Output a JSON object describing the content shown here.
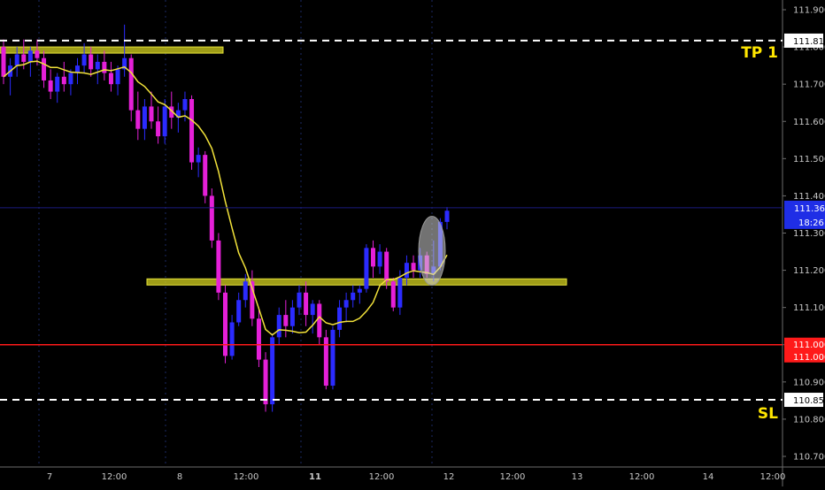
{
  "chart_data": {
    "type": "candlestick",
    "instrument_unit": "price",
    "ylim": [
      110.7,
      111.9
    ],
    "y_ticks": [
      "111.900",
      "111.800",
      "111.700",
      "111.600",
      "111.500",
      "111.400",
      "111.300",
      "111.200",
      "111.100",
      "111.000",
      "110.900",
      "110.800",
      "110.700"
    ],
    "x_ticks": [
      {
        "label": "7",
        "bold": false
      },
      {
        "label": "12:00",
        "bold": false
      },
      {
        "label": "8",
        "bold": false
      },
      {
        "label": "12:00",
        "bold": false
      },
      {
        "label": "11",
        "bold": true
      },
      {
        "label": "12:00",
        "bold": false
      },
      {
        "label": "12",
        "bold": false
      },
      {
        "label": "12:00",
        "bold": false
      },
      {
        "label": "13",
        "bold": false
      },
      {
        "label": "12:00",
        "bold": false
      },
      {
        "label": "14",
        "bold": false
      },
      {
        "label": "12:00",
        "bold": false
      }
    ],
    "horizontal_lines": [
      {
        "name": "take-profit-line",
        "price": 111.817,
        "label": "111.817",
        "text": "TP 1",
        "color": "#ffffff",
        "style": "dashed"
      },
      {
        "name": "stop-loss-line",
        "price": 110.852,
        "label": "110.852",
        "text": "SL",
        "color": "#ffffff",
        "style": "dashed"
      },
      {
        "name": "level-line",
        "price": 111.0,
        "label": "111.000",
        "label2": "111.000",
        "color": "#ff1a1a",
        "style": "solid"
      }
    ],
    "current_price": {
      "value": 111.368,
      "label": "111.368",
      "countdown": "18:26",
      "color": "#1f2ee6"
    },
    "zones": [
      {
        "name": "resistance-zone",
        "price_low": 111.79,
        "price_high": 111.8,
        "color": "#c7c41d"
      },
      {
        "name": "support-zone",
        "price_low": 111.167,
        "price_high": 111.177,
        "color": "#c7c41d"
      }
    ],
    "highlight": {
      "name": "breakout-ellipse",
      "price_low": 111.16,
      "price_high": 111.345
    },
    "moving_average_color": "#f2e23a",
    "candles": [
      [
        111.8,
        111.82,
        111.7,
        111.72
      ],
      [
        111.72,
        111.77,
        111.67,
        111.75
      ],
      [
        111.75,
        111.8,
        111.72,
        111.78
      ],
      [
        111.78,
        111.82,
        111.74,
        111.76
      ],
      [
        111.76,
        111.8,
        111.72,
        111.79
      ],
      [
        111.79,
        111.82,
        111.75,
        111.77
      ],
      [
        111.77,
        111.79,
        111.69,
        111.71
      ],
      [
        111.71,
        111.74,
        111.66,
        111.68
      ],
      [
        111.68,
        111.73,
        111.65,
        111.72
      ],
      [
        111.72,
        111.76,
        111.68,
        111.7
      ],
      [
        111.7,
        111.74,
        111.67,
        111.73
      ],
      [
        111.73,
        111.77,
        111.7,
        111.75
      ],
      [
        111.75,
        111.81,
        111.73,
        111.78
      ],
      [
        111.78,
        111.8,
        111.72,
        111.74
      ],
      [
        111.74,
        111.78,
        111.7,
        111.76
      ],
      [
        111.76,
        111.79,
        111.71,
        111.73
      ],
      [
        111.73,
        111.76,
        111.68,
        111.7
      ],
      [
        111.7,
        111.75,
        111.67,
        111.74
      ],
      [
        111.74,
        111.86,
        111.72,
        111.77
      ],
      [
        111.77,
        111.78,
        111.6,
        111.63
      ],
      [
        111.63,
        111.68,
        111.55,
        111.58
      ],
      [
        111.58,
        111.66,
        111.55,
        111.64
      ],
      [
        111.64,
        111.68,
        111.58,
        111.6
      ],
      [
        111.6,
        111.64,
        111.54,
        111.56
      ],
      [
        111.56,
        111.66,
        111.54,
        111.64
      ],
      [
        111.64,
        111.68,
        111.58,
        111.61
      ],
      [
        111.61,
        111.65,
        111.57,
        111.63
      ],
      [
        111.63,
        111.68,
        111.6,
        111.66
      ],
      [
        111.66,
        111.67,
        111.47,
        111.49
      ],
      [
        111.49,
        111.53,
        111.45,
        111.51
      ],
      [
        111.51,
        111.52,
        111.38,
        111.4
      ],
      [
        111.4,
        111.42,
        111.26,
        111.28
      ],
      [
        111.28,
        111.3,
        111.12,
        111.14
      ],
      [
        111.14,
        111.16,
        110.95,
        110.97
      ],
      [
        110.97,
        111.08,
        110.96,
        111.06
      ],
      [
        111.06,
        111.14,
        111.05,
        111.12
      ],
      [
        111.12,
        111.19,
        111.1,
        111.17
      ],
      [
        111.17,
        111.2,
        111.05,
        111.07
      ],
      [
        111.07,
        111.1,
        110.94,
        110.96
      ],
      [
        110.96,
        110.98,
        110.82,
        110.84
      ],
      [
        110.84,
        111.03,
        110.82,
        111.02
      ],
      [
        111.02,
        111.1,
        111.0,
        111.08
      ],
      [
        111.08,
        111.12,
        111.02,
        111.05
      ],
      [
        111.05,
        111.12,
        111.03,
        111.1
      ],
      [
        111.1,
        111.16,
        111.08,
        111.14
      ],
      [
        111.14,
        111.17,
        111.05,
        111.08
      ],
      [
        111.08,
        111.12,
        111.03,
        111.11
      ],
      [
        111.11,
        111.12,
        111.0,
        111.02
      ],
      [
        111.02,
        111.04,
        110.88,
        110.89
      ],
      [
        110.89,
        111.05,
        110.88,
        111.04
      ],
      [
        111.04,
        111.12,
        111.02,
        111.1
      ],
      [
        111.1,
        111.14,
        111.06,
        111.12
      ],
      [
        111.12,
        111.16,
        111.1,
        111.14
      ],
      [
        111.14,
        111.16,
        111.11,
        111.15
      ],
      [
        111.15,
        111.27,
        111.14,
        111.26
      ],
      [
        111.26,
        111.28,
        111.18,
        111.21
      ],
      [
        111.21,
        111.27,
        111.19,
        111.25
      ],
      [
        111.25,
        111.26,
        111.15,
        111.17
      ],
      [
        111.17,
        111.18,
        111.09,
        111.1
      ],
      [
        111.1,
        111.2,
        111.08,
        111.18
      ],
      [
        111.18,
        111.24,
        111.16,
        111.22
      ],
      [
        111.22,
        111.24,
        111.18,
        111.2
      ],
      [
        111.2,
        111.26,
        111.18,
        111.24
      ],
      [
        111.24,
        111.25,
        111.18,
        111.19
      ],
      [
        111.19,
        111.28,
        111.17,
        111.21
      ],
      [
        111.21,
        111.34,
        111.2,
        111.33
      ],
      [
        111.33,
        111.37,
        111.31,
        111.36
      ]
    ]
  }
}
